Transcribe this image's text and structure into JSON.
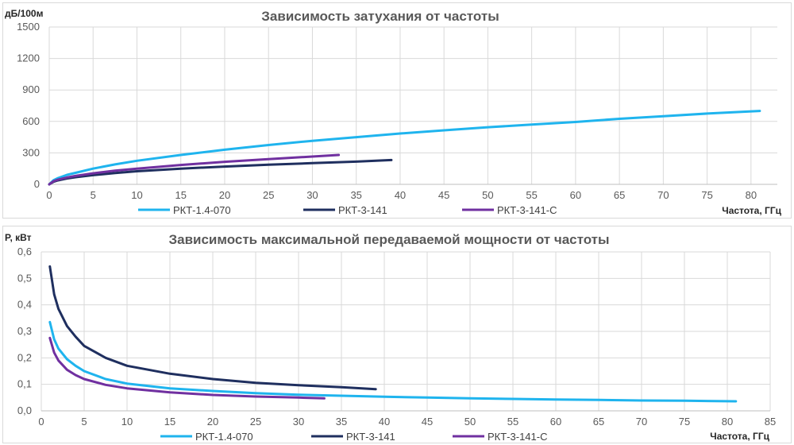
{
  "chart_data": [
    {
      "type": "line",
      "title": "Зависимость затухания  от частоты",
      "ylabel": "дБ/100м",
      "xlabel": "Частота, ГГц",
      "xlim": [
        0,
        83
      ],
      "ylim": [
        0,
        1500
      ],
      "xticks": [
        0,
        5,
        10,
        15,
        20,
        25,
        30,
        35,
        40,
        45,
        50,
        55,
        60,
        65,
        70,
        75,
        80
      ],
      "yticks": [
        0,
        300,
        600,
        900,
        1200,
        1500
      ],
      "legend_position": "bottom",
      "grid": true,
      "series": [
        {
          "name": "РКТ-1.4-070",
          "color": "#1fb4ee",
          "x": [
            0,
            0.5,
            1,
            2,
            3,
            5,
            7.5,
            10,
            15,
            20,
            25,
            30,
            35,
            40,
            45,
            50,
            55,
            60,
            65,
            70,
            75,
            81
          ],
          "y": [
            0,
            40,
            60,
            90,
            110,
            150,
            190,
            225,
            280,
            330,
            375,
            415,
            450,
            485,
            515,
            545,
            570,
            595,
            625,
            650,
            675,
            700
          ]
        },
        {
          "name": "РКТ-3-141",
          "color": "#1f2f5f",
          "x": [
            0,
            0.5,
            1,
            2,
            3,
            5,
            7.5,
            10,
            15,
            20,
            25,
            30,
            35,
            39
          ],
          "y": [
            0,
            25,
            38,
            55,
            68,
            88,
            108,
            125,
            150,
            170,
            187,
            202,
            217,
            232
          ]
        },
        {
          "name": "РКТ-3-141-С",
          "color": "#7030a0",
          "x": [
            0,
            0.5,
            1,
            2,
            3,
            5,
            7.5,
            10,
            15,
            20,
            25,
            30,
            33
          ],
          "y": [
            0,
            30,
            45,
            65,
            80,
            105,
            130,
            150,
            185,
            215,
            240,
            265,
            280
          ]
        }
      ]
    },
    {
      "type": "line",
      "title": "Зависимость максимальной  передаваемой  мощности  от частоты",
      "ylabel": "P, кВт",
      "xlabel": "Частота, ГГц",
      "xlim": [
        0,
        85
      ],
      "ylim": [
        0,
        0.6
      ],
      "xticks": [
        0,
        5,
        10,
        15,
        20,
        25,
        30,
        35,
        40,
        45,
        50,
        55,
        60,
        65,
        70,
        75,
        80,
        85
      ],
      "yticks": [
        "0,0",
        "0,1",
        "0,2",
        "0,3",
        "0,4",
        "0,5",
        "0,6"
      ],
      "legend_position": "bottom",
      "grid": true,
      "series": [
        {
          "name": "РКТ-1.4-070",
          "color": "#1fb4ee",
          "x": [
            1,
            1.5,
            2,
            3,
            4,
            5,
            7.5,
            10,
            15,
            20,
            25,
            30,
            35,
            40,
            45,
            50,
            55,
            60,
            65,
            70,
            75,
            81
          ],
          "y": [
            0.335,
            0.27,
            0.235,
            0.195,
            0.17,
            0.15,
            0.12,
            0.103,
            0.085,
            0.075,
            0.067,
            0.061,
            0.057,
            0.053,
            0.05,
            0.047,
            0.045,
            0.043,
            0.041,
            0.039,
            0.038,
            0.036
          ]
        },
        {
          "name": "РКТ-3-141",
          "color": "#1f2f5f",
          "x": [
            1,
            1.5,
            2,
            3,
            4,
            5,
            7.5,
            10,
            15,
            20,
            25,
            30,
            35,
            39
          ],
          "y": [
            0.545,
            0.44,
            0.385,
            0.32,
            0.28,
            0.245,
            0.2,
            0.17,
            0.14,
            0.12,
            0.106,
            0.097,
            0.089,
            0.082
          ]
        },
        {
          "name": "РКТ-3-141-С",
          "color": "#7030a0",
          "x": [
            1,
            1.5,
            2,
            3,
            4,
            5,
            7.5,
            10,
            15,
            20,
            25,
            30,
            33
          ],
          "y": [
            0.275,
            0.22,
            0.19,
            0.155,
            0.135,
            0.12,
            0.098,
            0.085,
            0.07,
            0.06,
            0.054,
            0.05,
            0.047
          ]
        }
      ]
    }
  ]
}
